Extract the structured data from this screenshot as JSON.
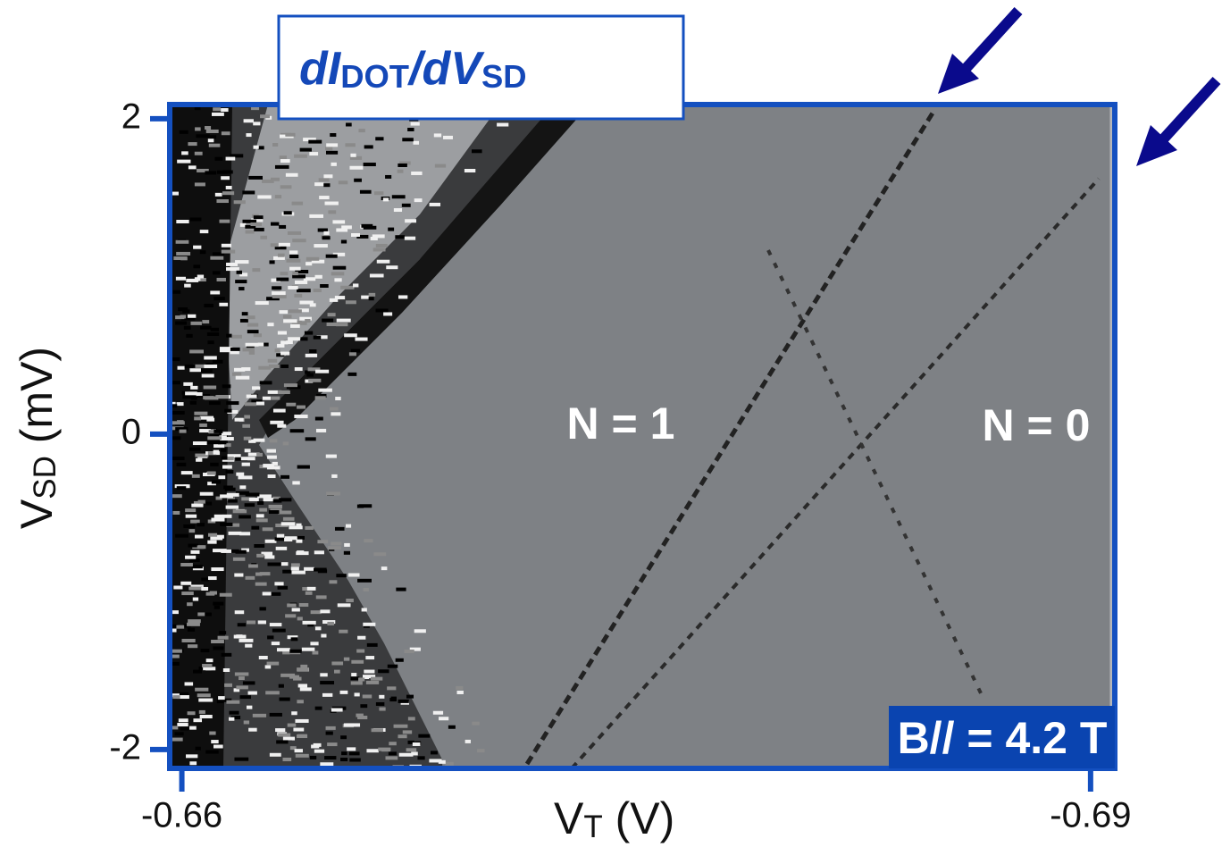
{
  "chart_data": {
    "type": "heatmap",
    "title": [
      {
        "text": "dI"
      },
      {
        "text": "DOT",
        "sub": true
      },
      {
        "text": "/dV"
      },
      {
        "text": "SD",
        "sub": true
      }
    ],
    "x_label": [
      {
        "text": "V"
      },
      {
        "text": "T",
        "sub": true
      },
      {
        "text": " (V)"
      }
    ],
    "y_label": [
      {
        "text": "V"
      },
      {
        "text": "SD",
        "sub": true
      },
      {
        "text": " (mV)"
      }
    ],
    "xlim": [
      -0.6596,
      -0.6908
    ],
    "xticks": [
      -0.66,
      -0.69
    ],
    "ylim": [
      -2.12,
      2.09
    ],
    "yticks": [
      -2,
      0,
      2
    ],
    "annotations": [
      "N = 1",
      "N = 0",
      "B// = 4.2 T"
    ],
    "axis_color": "#1450c0"
  }
}
